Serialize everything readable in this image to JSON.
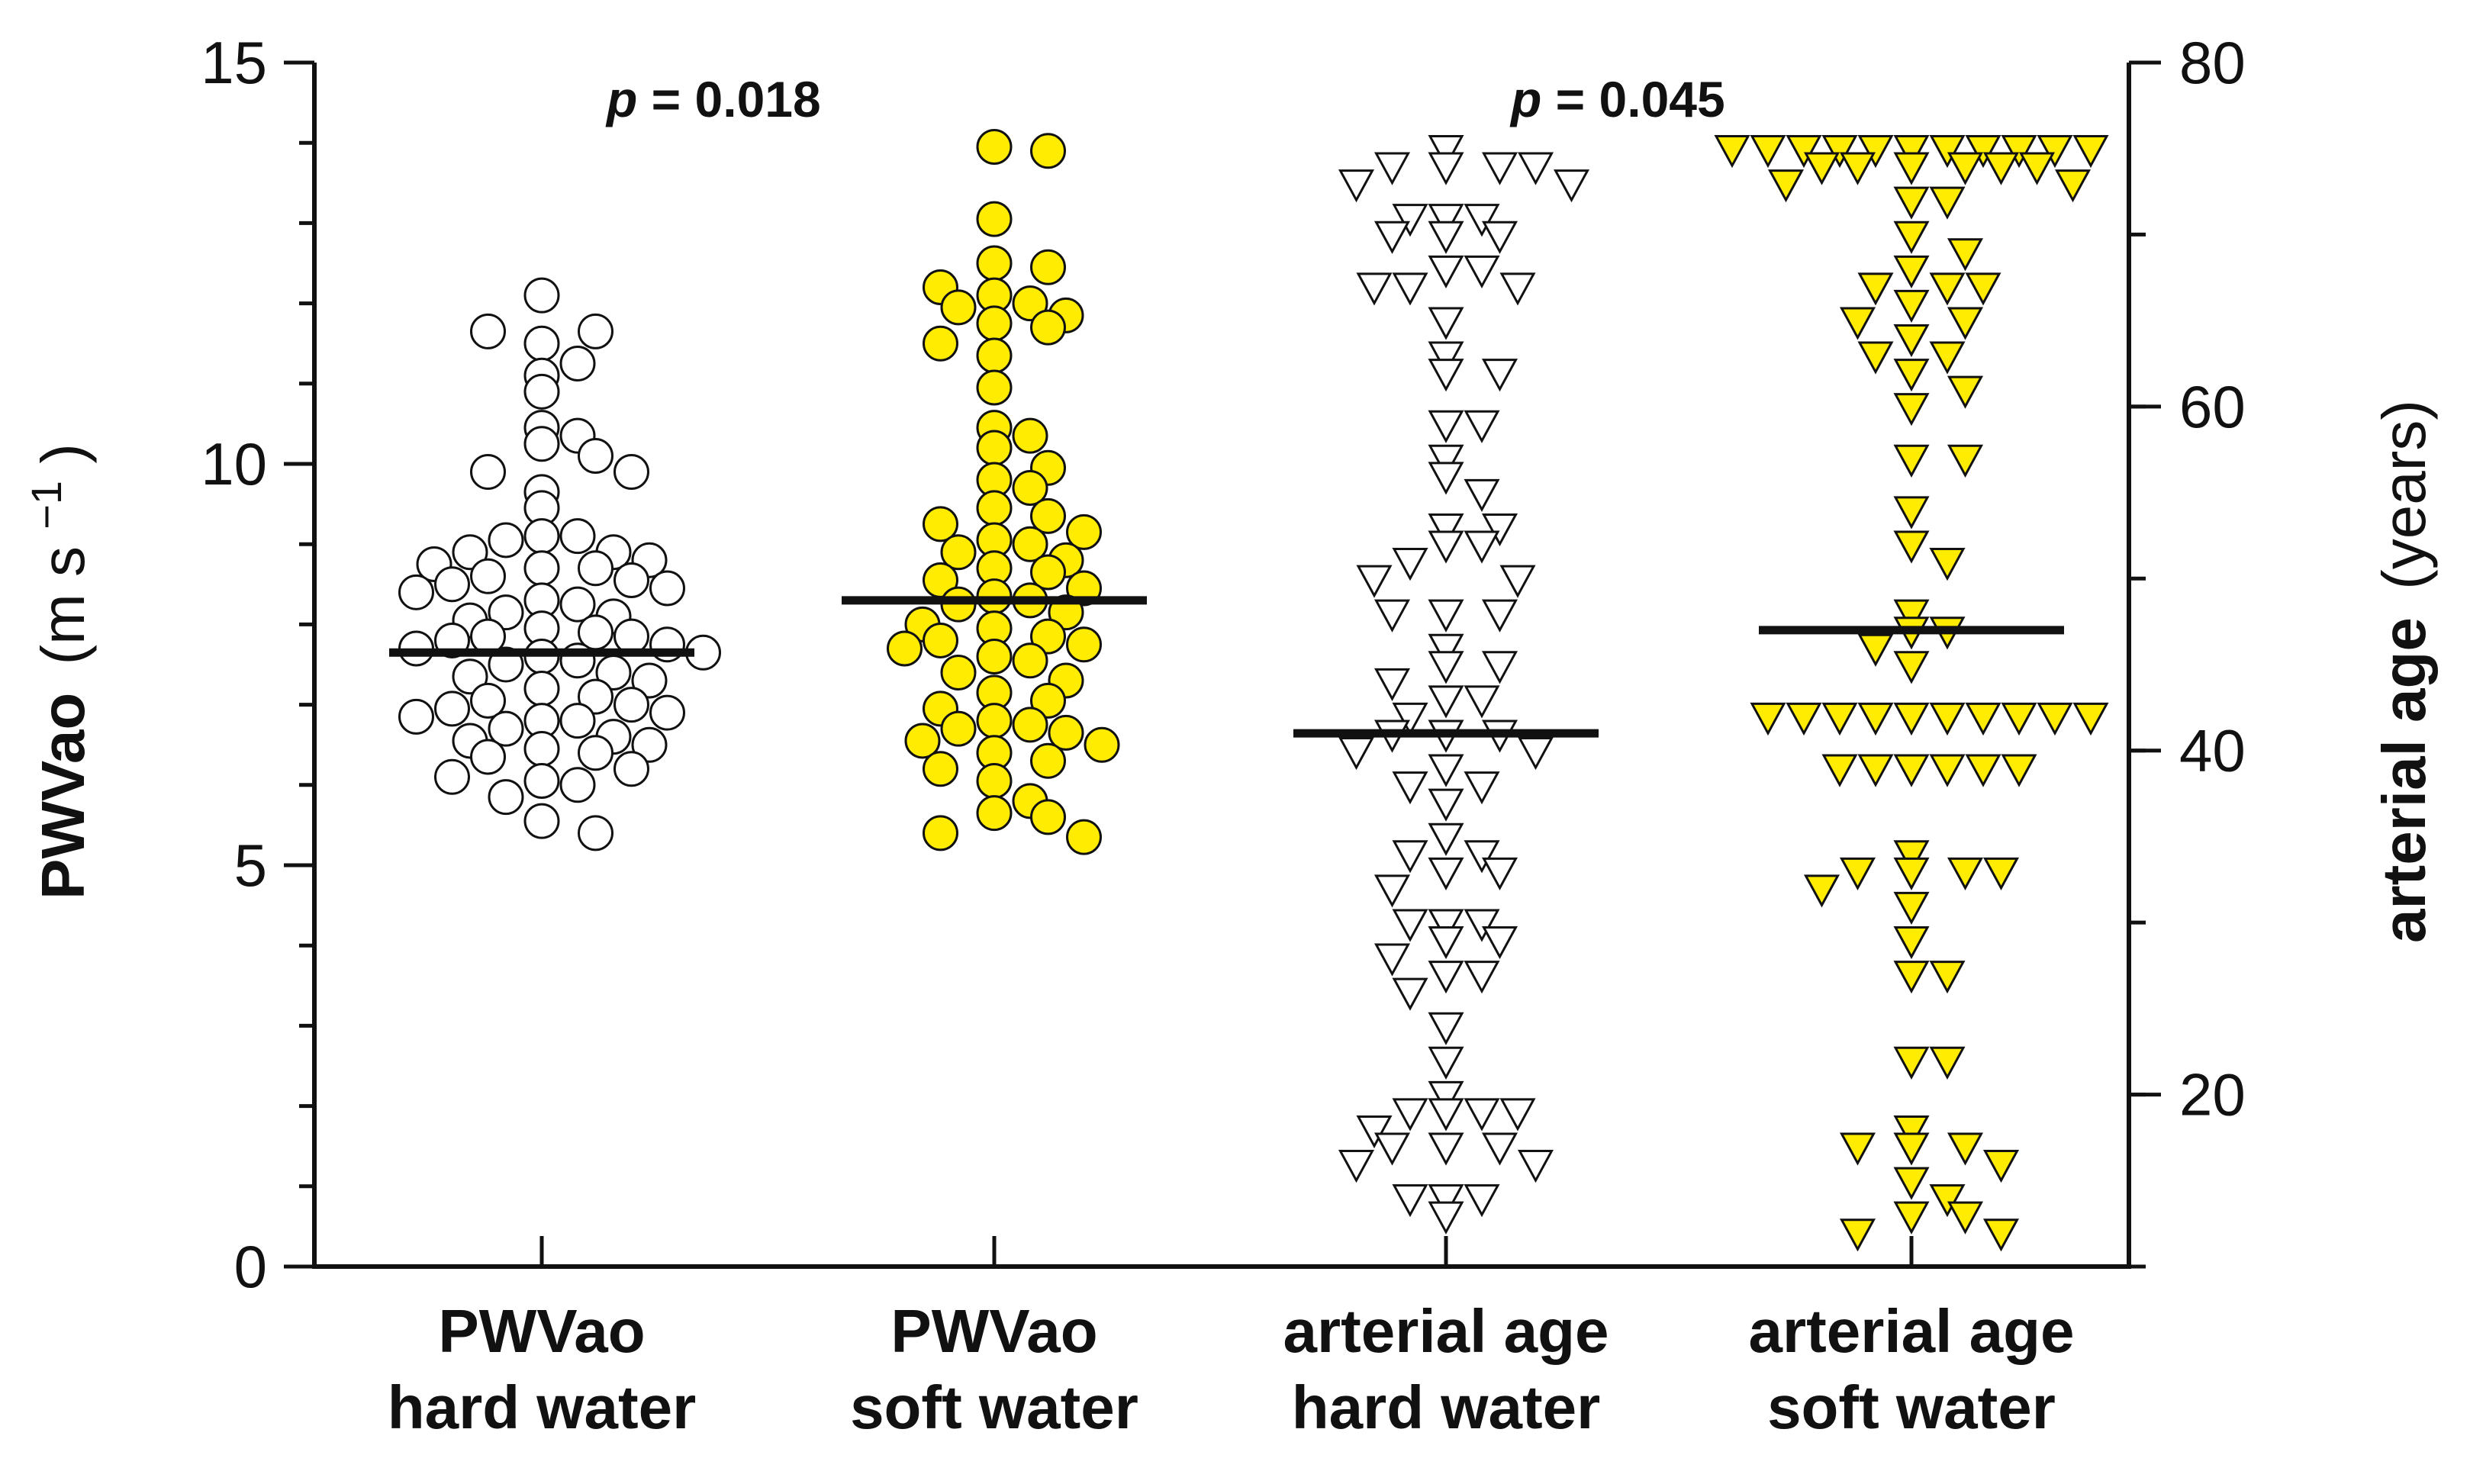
{
  "chart_data": {
    "type": "scatter",
    "title": "",
    "categories": [
      "PWVao hard water",
      "PWVao soft water",
      "arterial age hard water",
      "arterial age soft water"
    ],
    "category_labels": [
      [
        "PWVao",
        "hard water"
      ],
      [
        "PWVao",
        "soft water"
      ],
      [
        "arterial age",
        "hard water"
      ],
      [
        "arterial age",
        "soft water"
      ]
    ],
    "y_left": {
      "label_bold": "PWVao",
      "label_unit_prefix": "(m s",
      "label_unit_exp": "−1",
      "label_unit_suffix": ")",
      "range": [
        0,
        15
      ],
      "ticks": [
        0,
        5,
        10,
        15
      ],
      "tick_labels": [
        "0",
        "5",
        "10",
        "15"
      ],
      "minor_step": 1
    },
    "y_right": {
      "label_bold": "arterial age",
      "label_unit": "(years)",
      "range": [
        10,
        80
      ],
      "ticks": [
        20,
        40,
        60,
        80
      ],
      "tick_labels": [
        "20",
        "40",
        "60",
        "80"
      ],
      "minor_step": 10
    },
    "annotations": [
      {
        "p": "p",
        "text": " = 0.018",
        "between": "PWVao hard water / PWVao soft water"
      },
      {
        "p": "p",
        "text": " = 0.045",
        "between": "arterial age hard water / arterial age soft water"
      }
    ],
    "series": [
      {
        "name": "PWVao hard water",
        "axis": "left",
        "marker": "circle",
        "fill": "#ffffff",
        "stroke": "#111111",
        "mean": 7.65,
        "values": [
          12.1,
          11.5,
          11.65,
          11.65,
          11.1,
          11.25,
          10.9,
          10.45,
          10.35,
          10.25,
          10.1,
          9.9,
          9.9,
          9.65,
          9.45,
          9.1,
          9.1,
          9.05,
          8.9,
          8.9,
          8.8,
          8.75,
          8.7,
          8.7,
          8.6,
          8.55,
          8.5,
          8.45,
          8.4,
          8.3,
          8.25,
          8.15,
          8.1,
          8.05,
          7.95,
          7.9,
          7.85,
          7.85,
          7.8,
          7.75,
          7.7,
          7.65,
          7.6,
          7.55,
          7.5,
          7.4,
          7.35,
          7.3,
          7.2,
          7.1,
          7.05,
          7.0,
          6.95,
          6.9,
          6.85,
          6.8,
          6.8,
          6.7,
          6.6,
          6.55,
          6.5,
          6.45,
          6.4,
          6.35,
          6.2,
          6.1,
          6.05,
          6.0,
          5.85,
          5.55,
          5.4
        ]
      },
      {
        "name": "PWVao soft water",
        "axis": "left",
        "marker": "circle",
        "fill": "#ffec00",
        "stroke": "#111111",
        "mean": 8.3,
        "values": [
          13.95,
          13.9,
          13.05,
          12.5,
          12.45,
          12.2,
          12.1,
          12.0,
          11.95,
          11.85,
          11.75,
          11.7,
          11.5,
          11.35,
          10.95,
          10.45,
          10.35,
          10.2,
          9.95,
          9.8,
          9.7,
          9.45,
          9.35,
          9.25,
          9.15,
          9.05,
          9.0,
          8.9,
          8.8,
          8.7,
          8.65,
          8.55,
          8.45,
          8.35,
          8.3,
          8.25,
          8.15,
          8.0,
          7.95,
          7.85,
          7.8,
          7.75,
          7.7,
          7.6,
          7.55,
          7.4,
          7.3,
          7.15,
          7.05,
          6.95,
          6.8,
          6.75,
          6.7,
          6.65,
          6.55,
          6.5,
          6.4,
          6.3,
          6.2,
          6.05,
          5.8,
          5.65,
          5.6,
          5.4,
          5.35
        ]
      },
      {
        "name": "arterial age hard water",
        "axis": "right",
        "marker": "triangle-down",
        "fill": "#ffffff",
        "stroke": "#111111",
        "mean": 41,
        "values": [
          75,
          74,
          74,
          74,
          74,
          73,
          73,
          71,
          71,
          71,
          70,
          70,
          70,
          68,
          68,
          67,
          67,
          67,
          65,
          63,
          62,
          62,
          59,
          59,
          57,
          56,
          55,
          53,
          53,
          52,
          52,
          51,
          50,
          50,
          48,
          48,
          48,
          46,
          45,
          45,
          44,
          43,
          43,
          42,
          41,
          41,
          41,
          40,
          40,
          39,
          38,
          38,
          37,
          35,
          34,
          34,
          33,
          33,
          32,
          30,
          30,
          30,
          29,
          29,
          28,
          27,
          27,
          26,
          24,
          22,
          20,
          19,
          19,
          19,
          19,
          18,
          17,
          17,
          17,
          16,
          16,
          14,
          14,
          14,
          13
        ]
      },
      {
        "name": "arterial age soft water",
        "axis": "right",
        "marker": "triangle-down",
        "fill": "#ffec00",
        "stroke": "#111111",
        "mean": 47,
        "values": [
          75,
          75,
          75,
          75,
          75,
          75,
          75,
          75,
          75,
          75,
          75,
          74,
          74,
          74,
          74,
          74,
          74,
          73,
          73,
          72,
          72,
          70,
          69,
          68,
          67,
          67,
          67,
          66,
          65,
          65,
          64,
          63,
          63,
          62,
          61,
          60,
          57,
          57,
          54,
          52,
          51,
          48,
          47,
          47,
          46,
          45,
          42,
          42,
          42,
          42,
          42,
          42,
          42,
          42,
          42,
          42,
          39,
          39,
          39,
          39,
          39,
          39,
          34,
          33,
          33,
          33,
          33,
          32,
          31,
          29,
          27,
          27,
          22,
          22,
          18,
          17,
          17,
          17,
          16,
          15,
          14,
          13,
          13,
          12,
          12
        ]
      }
    ]
  }
}
